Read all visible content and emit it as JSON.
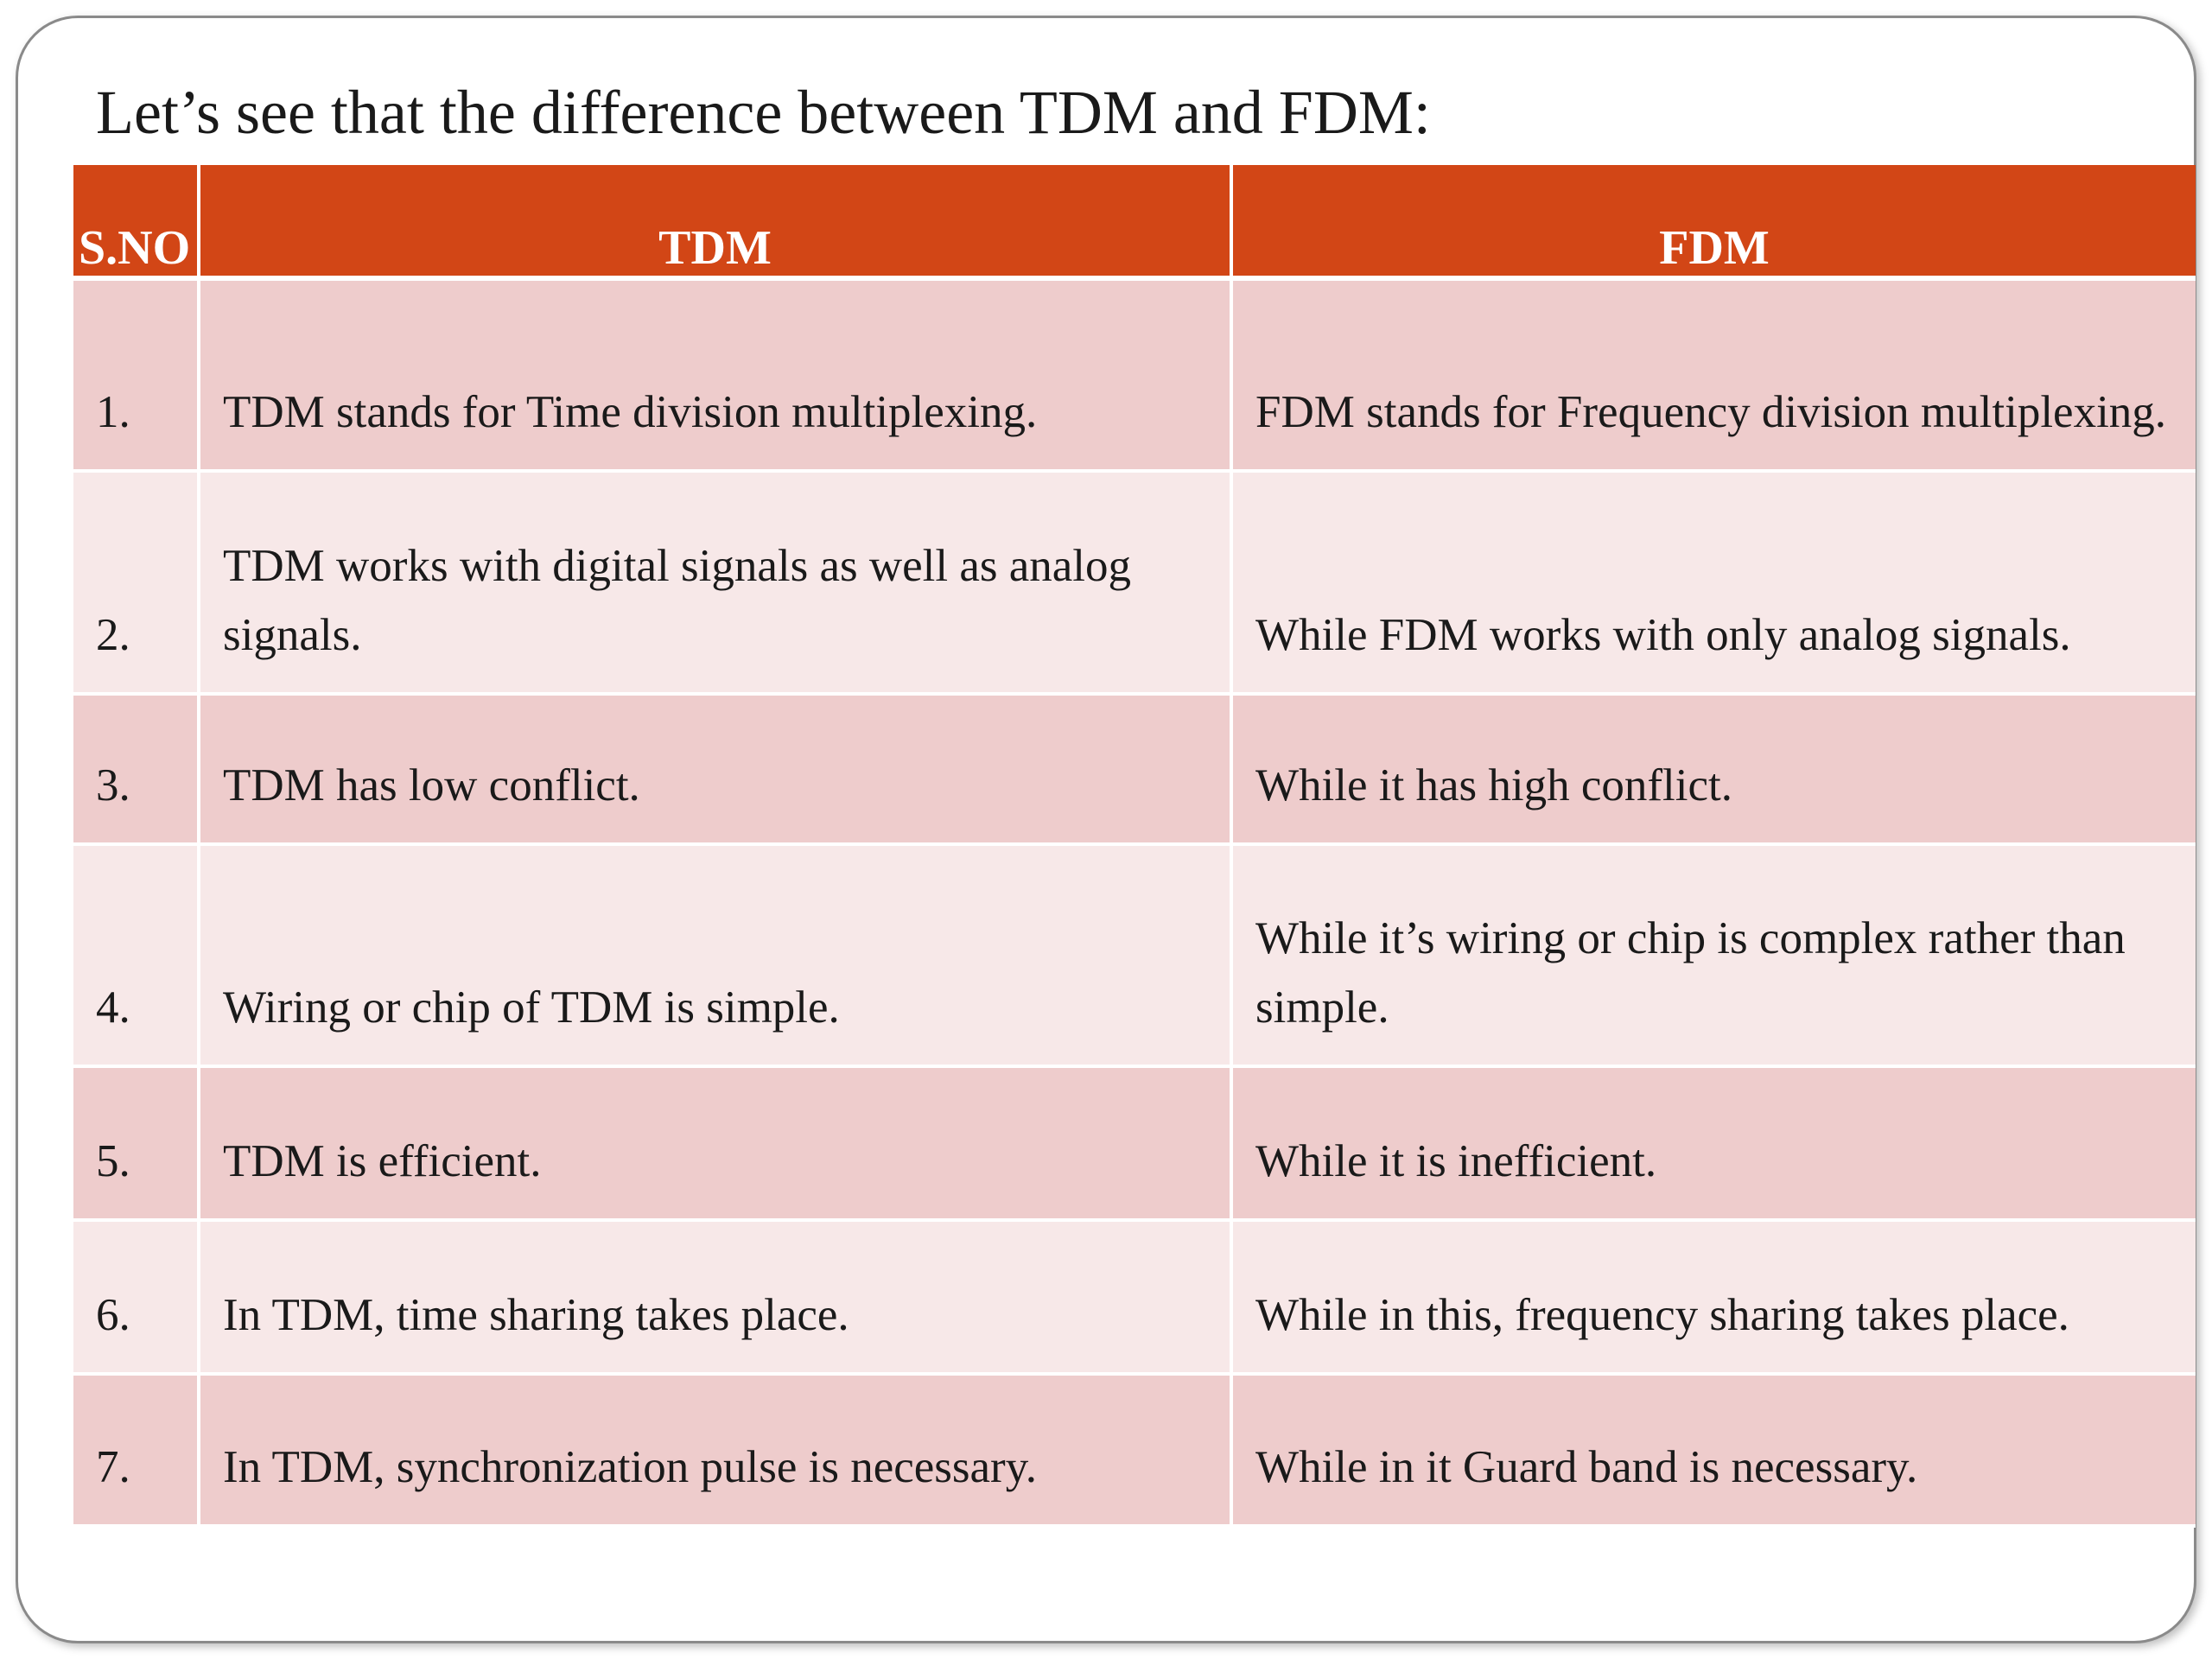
{
  "title": "Let’s see that the difference between TDM and FDM:",
  "colors": {
    "header_bg": "#d24616",
    "row_odd_bg": "#eecccc",
    "row_even_bg": "#f7e8e8"
  },
  "table": {
    "headers": [
      "S.NO",
      "TDM",
      "FDM"
    ],
    "rows": [
      [
        "1.",
        "TDM stands for Time division multiplexing.",
        "FDM stands for Frequency division multiplexing."
      ],
      [
        "2.",
        "TDM works with digital signals as well as analog signals.",
        "While FDM works with only analog signals."
      ],
      [
        "3.",
        "TDM has low conflict.",
        "While it has high conflict."
      ],
      [
        "4.",
        "Wiring or chip of TDM is simple.",
        "While it’s wiring or chip is complex rather than simple."
      ],
      [
        "5.",
        "TDM is efficient.",
        "While it is inefficient."
      ],
      [
        "6.",
        "In TDM, time sharing takes place.",
        "While in this, frequency sharing takes place."
      ],
      [
        "7.",
        "In TDM, synchronization pulse is necessary.",
        "While in it Guard band is necessary."
      ]
    ]
  }
}
